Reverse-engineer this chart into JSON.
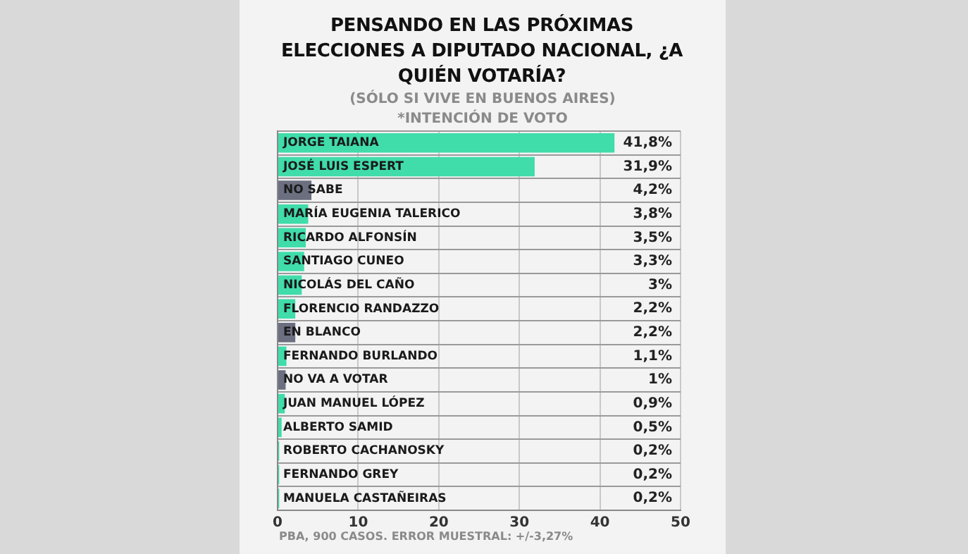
{
  "chart_data": {
    "type": "bar",
    "orientation": "horizontal",
    "title": "PENSANDO EN LAS PRÓXIMAS ELECCIONES A DIPUTADO NACIONAL, ¿A QUIÉN VOTARÍA?",
    "subtitle": "(SÓLO SI VIVE EN BUENOS AIRES)",
    "annotations": [
      "*INTENCIÓN DE VOTO",
      "PBA, 900 CASOS. ERROR MUESTRAL: +/-3,27%"
    ],
    "categories": [
      "JORGE TAIANA",
      "JOSÉ LUIS ESPERT",
      "NO SABE",
      "MARÍA EUGENIA TALERICO",
      "RICARDO ALFONSÍN",
      "SANTIAGO CUNEO",
      "NICOLÁS DEL CAÑO",
      "FLORENCIO RANDAZZO",
      "EN BLANCO",
      "FERNANDO BURLANDO",
      "NO VA A VOTAR",
      "JUAN MANUEL LÓPEZ",
      "ALBERTO SAMID",
      "ROBERTO CACHANOSKY",
      "FERNANDO GREY",
      "MANUELA CASTAÑEIRAS"
    ],
    "values": [
      41.8,
      31.9,
      4.2,
      3.8,
      3.5,
      3.3,
      3,
      2.2,
      2.2,
      1.1,
      1,
      0.9,
      0.5,
      0.2,
      0.2,
      0.2
    ],
    "value_labels": [
      "41,8%",
      "31,9%",
      "4,2%",
      "3,8%",
      "3,5%",
      "3,3%",
      "3%",
      "2,2%",
      "2,2%",
      "1,1%",
      "1%",
      "0,9%",
      "0,5%",
      "0,2%",
      "0,2%",
      "0,2%"
    ],
    "colors": [
      "#40dcaa",
      "#40dcaa",
      "#6b6f80",
      "#40dcaa",
      "#40dcaa",
      "#40dcaa",
      "#40dcaa",
      "#40dcaa",
      "#6b6f80",
      "#40dcaa",
      "#6b6f80",
      "#40dcaa",
      "#40dcaa",
      "#40dcaa",
      "#40dcaa",
      "#40dcaa"
    ],
    "xlim": [
      0,
      50
    ],
    "xticks": [
      0,
      10,
      20,
      30,
      40,
      50
    ],
    "grid": true,
    "legend": false
  }
}
